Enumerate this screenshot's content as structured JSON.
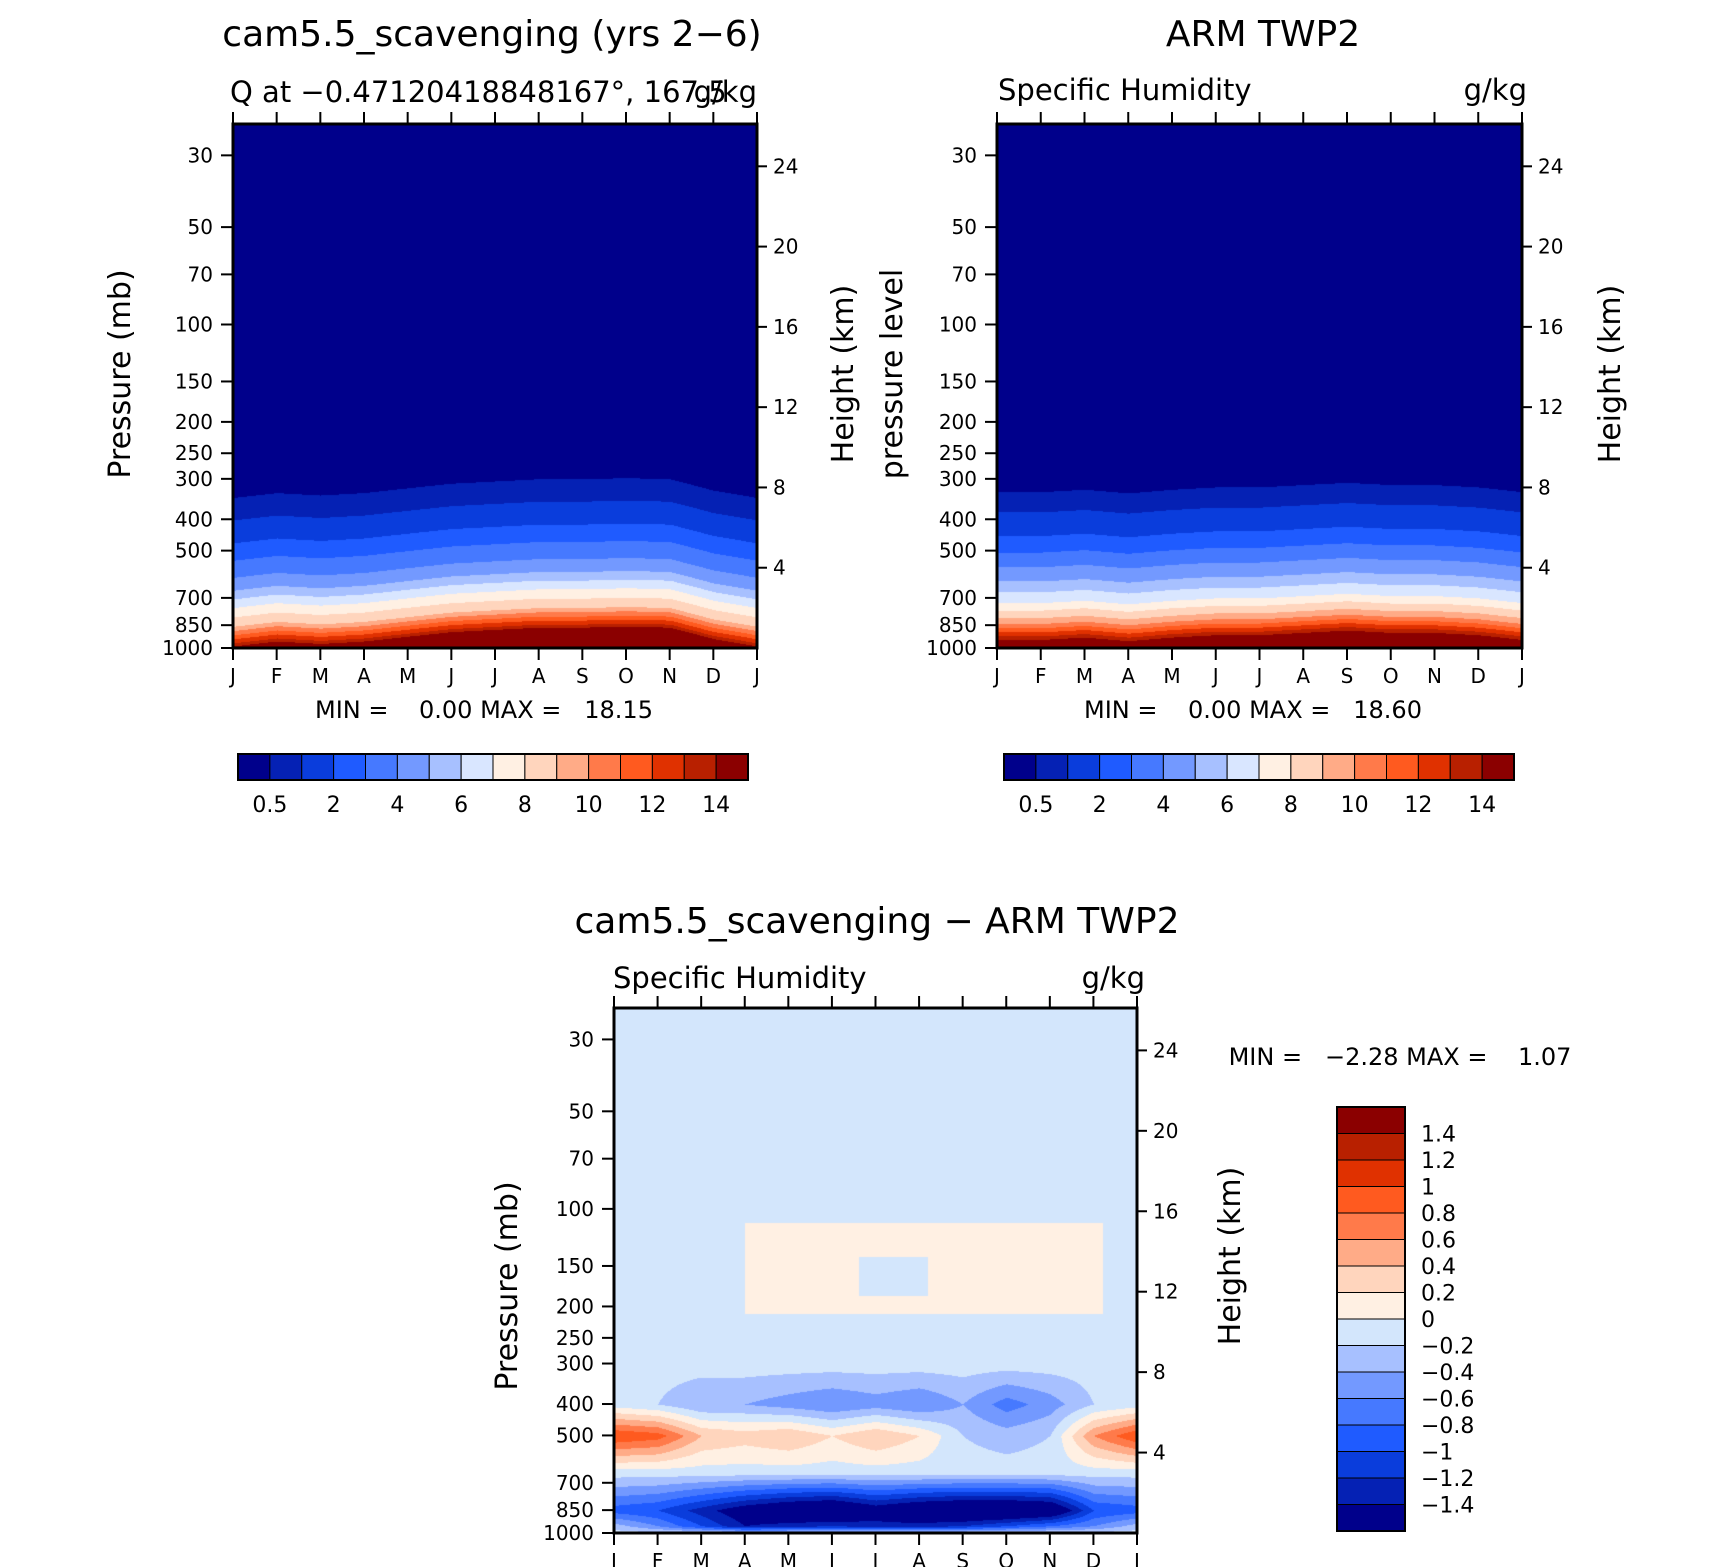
{
  "panels": [
    {
      "id": "model",
      "title": "cam5.5_scavenging (yrs 2−6)",
      "left_string": "Q at −0.47120418848167°, 167.5",
      "right_string": "g/kg",
      "left_axis_label": "Pressure (mb)",
      "right_axis_label": "Height (km)",
      "min_max": "MIN =    0.00 MAX =   18.15"
    },
    {
      "id": "obs",
      "title": "ARM TWP2",
      "left_string": "Specific Humidity",
      "right_string": "g/kg",
      "left_axis_label": "pressure level",
      "right_axis_label": "Height (km)",
      "min_max": "MIN =    0.00 MAX =   18.60"
    },
    {
      "id": "diff",
      "title": "cam5.5_scavenging − ARM TWP2",
      "left_string": "Specific Humidity",
      "right_string": "g/kg",
      "left_axis_label": "Pressure (mb)",
      "right_axis_label": "Height (km)",
      "min_max": "MIN =   −2.28 MAX =    1.07"
    }
  ],
  "colorbars": {
    "absolute": {
      "colors": [
        "#00008b",
        "#0521b4",
        "#0a3ddc",
        "#1f5bff",
        "#4679ff",
        "#7399ff",
        "#a7c0ff",
        "#d9e6ff",
        "#fff0e3",
        "#ffd5bd",
        "#ffab87",
        "#ff7a4a",
        "#ff5a1f",
        "#e03100",
        "#b82000",
        "#8b0000"
      ],
      "labels": [
        "0.5",
        "2",
        "4",
        "6",
        "8",
        "10",
        "12",
        "14"
      ]
    },
    "difference": {
      "colors": [
        "#00008b",
        "#0521b4",
        "#0a3ddc",
        "#1f5bff",
        "#4679ff",
        "#7399ff",
        "#a7c0ff",
        "#d3e6fc",
        "#fff0e3",
        "#ffd5bd",
        "#ffab87",
        "#ff7a4a",
        "#ff5a1f",
        "#e03100",
        "#b82000",
        "#8b0000"
      ],
      "labels": [
        "−1.4",
        "−1.2",
        "−1",
        "−0.8",
        "−0.6",
        "−0.4",
        "−0.2",
        "0",
        "0.2",
        "0.4",
        "0.6",
        "0.8",
        "1",
        "1.2",
        "1.4"
      ]
    }
  },
  "chart_data": [
    {
      "type": "heatmap",
      "panel": "model",
      "title": "cam5.5_scavenging (yrs 2−6)",
      "variable": "Q",
      "units": "g/kg",
      "x_ticks": [
        "J",
        "F",
        "M",
        "A",
        "M",
        "J",
        "J",
        "A",
        "S",
        "O",
        "N",
        "D",
        "J"
      ],
      "y_ticks_pressure": [
        30,
        50,
        70,
        100,
        150,
        200,
        250,
        300,
        400,
        500,
        700,
        850,
        1000
      ],
      "y_scale": "log",
      "y_range_mb": [
        1000,
        24
      ],
      "right_ticks_km": [
        4,
        8,
        12,
        16,
        20,
        24
      ],
      "contour_levels": [
        0.5,
        1,
        2,
        3,
        4,
        5,
        6,
        7,
        8,
        9,
        10,
        11,
        12,
        13,
        14
      ],
      "min": 0.0,
      "max": 18.15,
      "months": [
        "J",
        "F",
        "M",
        "A",
        "M",
        "J",
        "J",
        "A",
        "S",
        "O",
        "N",
        "D",
        "J"
      ],
      "profile_pressure_mb": [
        1000,
        950,
        900,
        850,
        800,
        700,
        600,
        500,
        400,
        300,
        250
      ],
      "profile_g_per_kg": [
        18.0,
        15.5,
        13.0,
        11.0,
        9.0,
        7.0,
        4.5,
        3.0,
        1.2,
        0.3,
        0.1
      ],
      "seasonal_shift_mb": [
        -40,
        -20,
        -30,
        -20,
        0,
        20,
        30,
        40,
        40,
        45,
        40,
        -10,
        -40
      ]
    },
    {
      "type": "heatmap",
      "panel": "obs",
      "title": "ARM TWP2",
      "variable": "Specific Humidity",
      "units": "g/kg",
      "x_ticks": [
        "J",
        "F",
        "M",
        "A",
        "M",
        "J",
        "J",
        "A",
        "S",
        "O",
        "N",
        "D",
        "J"
      ],
      "y_ticks_pressure": [
        30,
        50,
        70,
        100,
        150,
        200,
        250,
        300,
        400,
        500,
        700,
        850,
        1000
      ],
      "y_scale": "log",
      "y_range_mb": [
        1000,
        24
      ],
      "right_ticks_km": [
        4,
        8,
        12,
        16,
        20,
        24
      ],
      "contour_levels": [
        0.5,
        1,
        2,
        3,
        4,
        5,
        6,
        7,
        8,
        9,
        10,
        11,
        12,
        13,
        14
      ],
      "min": 0.0,
      "max": 18.6,
      "months": [
        "J",
        "F",
        "M",
        "A",
        "M",
        "J",
        "J",
        "A",
        "S",
        "O",
        "N",
        "D",
        "J"
      ],
      "profile_pressure_mb": [
        1000,
        950,
        900,
        850,
        800,
        700,
        600,
        500,
        400,
        300,
        250
      ],
      "profile_g_per_kg": [
        18.5,
        16.0,
        13.5,
        11.5,
        9.5,
        7.0,
        5.0,
        3.2,
        1.3,
        0.3,
        0.1
      ],
      "seasonal_shift_mb": [
        -20,
        -20,
        -10,
        -25,
        -10,
        0,
        0,
        10,
        20,
        10,
        10,
        0,
        -20
      ]
    },
    {
      "type": "heatmap",
      "panel": "diff",
      "title": "cam5.5_scavenging − ARM TWP2",
      "variable": "Specific Humidity",
      "units": "g/kg",
      "x_ticks": [
        "J",
        "F",
        "M",
        "A",
        "M",
        "J",
        "J",
        "A",
        "S",
        "O",
        "N",
        "D",
        "J"
      ],
      "y_ticks_pressure": [
        30,
        50,
        70,
        100,
        150,
        200,
        250,
        300,
        400,
        500,
        700,
        850,
        1000
      ],
      "y_scale": "log",
      "y_range_mb": [
        1000,
        24
      ],
      "right_ticks_km": [
        4,
        8,
        12,
        16,
        20,
        24
      ],
      "contour_levels": [
        -1.4,
        -1.2,
        -1,
        -0.8,
        -0.6,
        -0.4,
        -0.2,
        0,
        0.2,
        0.4,
        0.6,
        0.8,
        1,
        1.2,
        1.4
      ],
      "min": -2.28,
      "max": 1.07,
      "upper_bands": [
        {
          "month_range": [
            3.0,
            11.2
          ],
          "pressure_range_mb": [
            110,
            210
          ],
          "value": 0.1
        }
      ],
      "month_profiles": {
        "months": [
          0,
          1,
          2,
          3,
          4,
          5,
          6,
          7,
          8,
          9,
          10,
          11,
          12
        ],
        "value_at_500mb": [
          1.0,
          0.9,
          0.4,
          0.3,
          0.4,
          0.2,
          0.4,
          0.2,
          -0.2,
          -0.3,
          -0.2,
          0.6,
          1.0
        ],
        "value_at_400mb": [
          -0.1,
          -0.2,
          -0.4,
          -0.4,
          -0.5,
          -0.6,
          -0.5,
          -0.6,
          -0.4,
          -0.7,
          -0.5,
          -0.2,
          -0.1
        ],
        "value_at_850mb": [
          -0.9,
          -1.0,
          -1.3,
          -1.6,
          -1.8,
          -1.9,
          -1.6,
          -1.8,
          -1.9,
          -1.9,
          -1.8,
          -1.0,
          -0.9
        ],
        "value_at_950mb": [
          -0.3,
          -0.6,
          -1.0,
          -1.4,
          -1.3,
          -1.2,
          -1.3,
          -1.3,
          -1.2,
          -1.0,
          -0.8,
          -0.6,
          -0.3
        ]
      }
    }
  ]
}
